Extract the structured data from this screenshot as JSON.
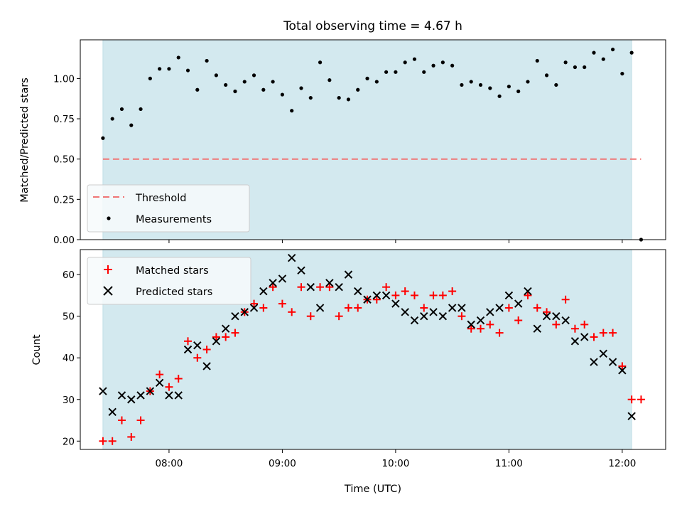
{
  "chart_data": [
    {
      "type": "scatter",
      "title": "Total observing time = 4.67 h",
      "xlabel": "",
      "ylabel": "Matched/Predicted stars",
      "x_axis": "time (UTC)",
      "xlim": [
        "07:13",
        "12:23"
      ],
      "ylim": [
        0,
        1.24
      ],
      "x_ticks": [
        "08:00",
        "09:00",
        "10:00",
        "11:00",
        "12:00"
      ],
      "x_tick_labels_shown": false,
      "y_ticks": [
        0.0,
        0.25,
        0.5,
        0.75,
        1.0
      ],
      "y_tick_labels": [
        "0.00",
        "0.25",
        "0.50",
        "0.75",
        "1.00"
      ],
      "observing_span": [
        "07:25",
        "12:05"
      ],
      "observing_span_color": "#d3e9ef",
      "legend_position": "lower-left",
      "legend": [
        {
          "label": "Threshold",
          "style": "dashed-line",
          "color": "#f07575"
        },
        {
          "label": "Measurements",
          "style": "dot",
          "color": "#000000"
        }
      ],
      "threshold": {
        "x": [
          "07:25",
          "12:10"
        ],
        "y": 0.5,
        "color": "#f07575"
      },
      "series": [
        {
          "name": "Measurements",
          "color": "#000000",
          "points": [
            [
              "07:25",
              0.63
            ],
            [
              "07:30",
              0.75
            ],
            [
              "07:35",
              0.81
            ],
            [
              "07:40",
              0.71
            ],
            [
              "07:45",
              0.81
            ],
            [
              "07:50",
              1.0
            ],
            [
              "07:55",
              1.06
            ],
            [
              "08:00",
              1.06
            ],
            [
              "08:05",
              1.13
            ],
            [
              "08:10",
              1.05
            ],
            [
              "08:15",
              0.93
            ],
            [
              "08:20",
              1.11
            ],
            [
              "08:25",
              1.02
            ],
            [
              "08:30",
              0.96
            ],
            [
              "08:35",
              0.92
            ],
            [
              "08:40",
              0.98
            ],
            [
              "08:45",
              1.02
            ],
            [
              "08:50",
              0.93
            ],
            [
              "08:55",
              0.98
            ],
            [
              "09:00",
              0.9
            ],
            [
              "09:05",
              0.8
            ],
            [
              "09:10",
              0.94
            ],
            [
              "09:15",
              0.88
            ],
            [
              "09:20",
              1.1
            ],
            [
              "09:25",
              0.99
            ],
            [
              "09:30",
              0.88
            ],
            [
              "09:35",
              0.87
            ],
            [
              "09:40",
              0.93
            ],
            [
              "09:45",
              1.0
            ],
            [
              "09:50",
              0.98
            ],
            [
              "09:55",
              1.04
            ],
            [
              "10:00",
              1.04
            ],
            [
              "10:05",
              1.1
            ],
            [
              "10:10",
              1.12
            ],
            [
              "10:15",
              1.04
            ],
            [
              "10:20",
              1.08
            ],
            [
              "10:25",
              1.1
            ],
            [
              "10:30",
              1.08
            ],
            [
              "10:35",
              0.96
            ],
            [
              "10:40",
              0.98
            ],
            [
              "10:45",
              0.96
            ],
            [
              "10:50",
              0.94
            ],
            [
              "10:55",
              0.89
            ],
            [
              "11:00",
              0.95
            ],
            [
              "11:05",
              0.92
            ],
            [
              "11:10",
              0.98
            ],
            [
              "11:15",
              1.11
            ],
            [
              "11:20",
              1.02
            ],
            [
              "11:25",
              0.96
            ],
            [
              "11:30",
              1.1
            ],
            [
              "11:35",
              1.07
            ],
            [
              "11:40",
              1.07
            ],
            [
              "11:45",
              1.16
            ],
            [
              "11:50",
              1.12
            ],
            [
              "11:55",
              1.18
            ],
            [
              "12:00",
              1.03
            ],
            [
              "12:05",
              1.16
            ],
            [
              "12:10",
              0.0
            ]
          ]
        }
      ]
    },
    {
      "type": "scatter",
      "title": "",
      "xlabel": "Time (UTC)",
      "ylabel": "Count",
      "x_axis": "time (UTC)",
      "xlim": [
        "07:13",
        "12:23"
      ],
      "ylim": [
        18,
        66
      ],
      "x_ticks": [
        "08:00",
        "09:00",
        "10:00",
        "11:00",
        "12:00"
      ],
      "x_tick_labels": [
        "08:00",
        "09:00",
        "10:00",
        "11:00",
        "12:00"
      ],
      "y_ticks": [
        20,
        30,
        40,
        50,
        60
      ],
      "y_tick_labels": [
        "20",
        "30",
        "40",
        "50",
        "60"
      ],
      "observing_span": [
        "07:25",
        "12:05"
      ],
      "observing_span_color": "#d3e9ef",
      "legend_position": "top-left",
      "legend": [
        {
          "label": "Matched stars",
          "style": "plus",
          "color": "#ff0000"
        },
        {
          "label": "Predicted stars",
          "style": "x",
          "color": "#000000"
        }
      ],
      "series": [
        {
          "name": "Matched stars",
          "color": "#ff0000",
          "points": [
            [
              "07:25",
              20
            ],
            [
              "07:30",
              20
            ],
            [
              "07:35",
              25
            ],
            [
              "07:40",
              21
            ],
            [
              "07:45",
              25
            ],
            [
              "07:50",
              32
            ],
            [
              "07:55",
              36
            ],
            [
              "08:00",
              33
            ],
            [
              "08:05",
              35
            ],
            [
              "08:10",
              44
            ],
            [
              "08:15",
              40
            ],
            [
              "08:20",
              42
            ],
            [
              "08:25",
              45
            ],
            [
              "08:30",
              45
            ],
            [
              "08:35",
              46
            ],
            [
              "08:40",
              51
            ],
            [
              "08:45",
              53
            ],
            [
              "08:50",
              52
            ],
            [
              "08:55",
              57
            ],
            [
              "09:00",
              53
            ],
            [
              "09:05",
              51
            ],
            [
              "09:10",
              57
            ],
            [
              "09:15",
              50
            ],
            [
              "09:20",
              57
            ],
            [
              "09:25",
              57
            ],
            [
              "09:30",
              50
            ],
            [
              "09:35",
              52
            ],
            [
              "09:40",
              52
            ],
            [
              "09:45",
              54
            ],
            [
              "09:50",
              54
            ],
            [
              "09:55",
              57
            ],
            [
              "10:00",
              55
            ],
            [
              "10:05",
              56
            ],
            [
              "10:10",
              55
            ],
            [
              "10:15",
              52
            ],
            [
              "10:20",
              55
            ],
            [
              "10:25",
              55
            ],
            [
              "10:30",
              56
            ],
            [
              "10:35",
              50
            ],
            [
              "10:40",
              47
            ],
            [
              "10:45",
              47
            ],
            [
              "10:50",
              48
            ],
            [
              "10:55",
              46
            ],
            [
              "11:00",
              52
            ],
            [
              "11:05",
              49
            ],
            [
              "11:10",
              55
            ],
            [
              "11:15",
              52
            ],
            [
              "11:20",
              51
            ],
            [
              "11:25",
              48
            ],
            [
              "11:30",
              54
            ],
            [
              "11:35",
              47
            ],
            [
              "11:40",
              48
            ],
            [
              "11:45",
              45
            ],
            [
              "11:50",
              46
            ],
            [
              "11:55",
              46
            ],
            [
              "12:00",
              38
            ],
            [
              "12:05",
              30
            ],
            [
              "12:10",
              30
            ]
          ]
        },
        {
          "name": "Predicted stars",
          "color": "#000000",
          "points": [
            [
              "07:25",
              32
            ],
            [
              "07:30",
              27
            ],
            [
              "07:35",
              31
            ],
            [
              "07:40",
              30
            ],
            [
              "07:45",
              31
            ],
            [
              "07:50",
              32
            ],
            [
              "07:55",
              34
            ],
            [
              "08:00",
              31
            ],
            [
              "08:05",
              31
            ],
            [
              "08:10",
              42
            ],
            [
              "08:15",
              43
            ],
            [
              "08:20",
              38
            ],
            [
              "08:25",
              44
            ],
            [
              "08:30",
              47
            ],
            [
              "08:35",
              50
            ],
            [
              "08:40",
              51
            ],
            [
              "08:45",
              52
            ],
            [
              "08:50",
              56
            ],
            [
              "08:55",
              58
            ],
            [
              "09:00",
              59
            ],
            [
              "09:05",
              64
            ],
            [
              "09:10",
              61
            ],
            [
              "09:15",
              57
            ],
            [
              "09:20",
              52
            ],
            [
              "09:25",
              58
            ],
            [
              "09:30",
              57
            ],
            [
              "09:35",
              60
            ],
            [
              "09:40",
              56
            ],
            [
              "09:45",
              54
            ],
            [
              "09:50",
              55
            ],
            [
              "09:55",
              55
            ],
            [
              "10:00",
              53
            ],
            [
              "10:05",
              51
            ],
            [
              "10:10",
              49
            ],
            [
              "10:15",
              50
            ],
            [
              "10:20",
              51
            ],
            [
              "10:25",
              50
            ],
            [
              "10:30",
              52
            ],
            [
              "10:35",
              52
            ],
            [
              "10:40",
              48
            ],
            [
              "10:45",
              49
            ],
            [
              "10:50",
              51
            ],
            [
              "10:55",
              52
            ],
            [
              "11:00",
              55
            ],
            [
              "11:05",
              53
            ],
            [
              "11:10",
              56
            ],
            [
              "11:15",
              47
            ],
            [
              "11:20",
              50
            ],
            [
              "11:25",
              50
            ],
            [
              "11:30",
              49
            ],
            [
              "11:35",
              44
            ],
            [
              "11:40",
              45
            ],
            [
              "11:45",
              39
            ],
            [
              "11:50",
              41
            ],
            [
              "11:55",
              39
            ],
            [
              "12:00",
              37
            ],
            [
              "12:05",
              26
            ]
          ]
        }
      ]
    }
  ]
}
